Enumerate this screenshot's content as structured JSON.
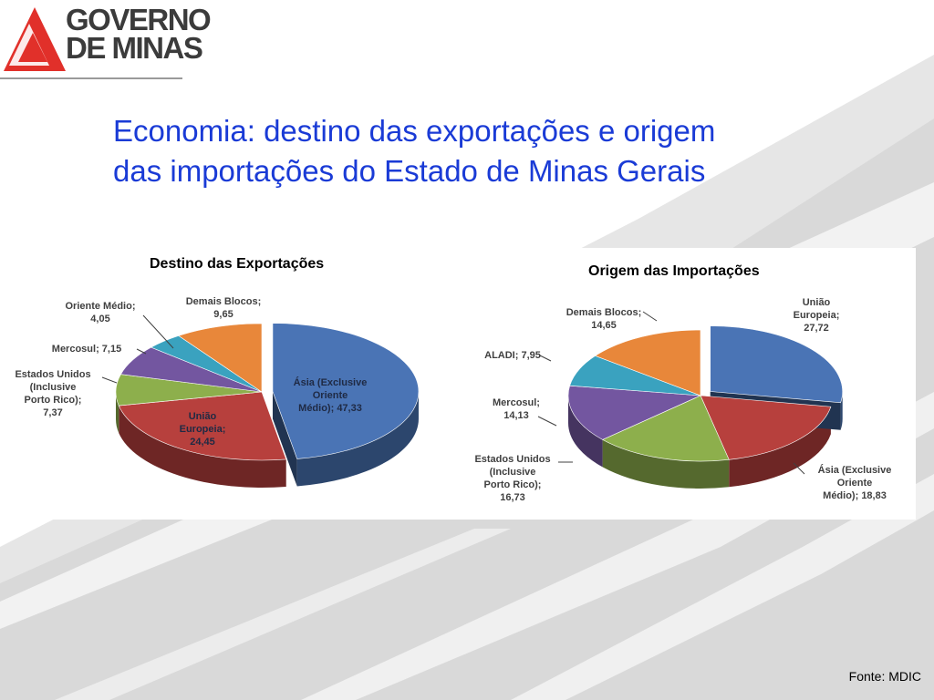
{
  "logo": {
    "line1": "GOVERNO",
    "line2": "DE MINAS"
  },
  "title": {
    "line1": "Economia: destino das exportações e origem",
    "line2": "das importações do Estado de Minas Gerais"
  },
  "source": "Fonte: MDIC",
  "chart_data": [
    {
      "type": "pie",
      "title": "Destino das Exportações",
      "series": [
        {
          "label": "Ásia (Exclusive Oriente Médio)",
          "value": 47.33,
          "display": [
            "Ásia (Exclusive",
            "Oriente",
            "Médio); 47,33"
          ],
          "color": "#4a74b5"
        },
        {
          "label": "União Europeia",
          "value": 24.45,
          "display": [
            "União",
            "Europeia;",
            "24,45"
          ],
          "color": "#b7403d"
        },
        {
          "label": "Estados Unidos (Inclusive Porto Rico)",
          "value": 7.37,
          "display": [
            "Estados Unidos",
            "(Inclusive",
            "Porto Rico);",
            "7,37"
          ],
          "color": "#8daf4c"
        },
        {
          "label": "Mercosul",
          "value": 7.15,
          "display": [
            "Mercosul; 7,15"
          ],
          "color": "#7356a0"
        },
        {
          "label": "Oriente Médio",
          "value": 4.05,
          "display": [
            "Oriente Médio;",
            "4,05"
          ],
          "color": "#3aa2bf"
        },
        {
          "label": "Demais Blocos",
          "value": 9.65,
          "display": [
            "Demais Blocos;",
            "9,65"
          ],
          "color": "#e8873a"
        }
      ]
    },
    {
      "type": "pie",
      "title": "Origem das Importações",
      "series": [
        {
          "label": "União Europeia",
          "value": 27.72,
          "display": [
            "União",
            "Europeia;",
            "27,72"
          ],
          "color": "#4a74b5"
        },
        {
          "label": "Ásia (Exclusive Oriente Médio)",
          "value": 18.83,
          "display": [
            "Ásia (Exclusive",
            "Oriente",
            "Médio); 18,83"
          ],
          "color": "#b7403d"
        },
        {
          "label": "Estados Unidos (Inclusive Porto Rico)",
          "value": 16.73,
          "display": [
            "Estados Unidos",
            "(Inclusive",
            "Porto Rico);",
            "16,73"
          ],
          "color": "#8daf4c"
        },
        {
          "label": "Mercosul",
          "value": 14.13,
          "display": [
            "Mercosul;",
            "14,13"
          ],
          "color": "#7356a0"
        },
        {
          "label": "ALADI",
          "value": 7.95,
          "display": [
            "ALADI; 7,95"
          ],
          "color": "#3aa2bf"
        },
        {
          "label": "Demais Blocos",
          "value": 14.65,
          "display": [
            "Demais Blocos;",
            "14,65"
          ],
          "color": "#e8873a"
        }
      ]
    }
  ]
}
